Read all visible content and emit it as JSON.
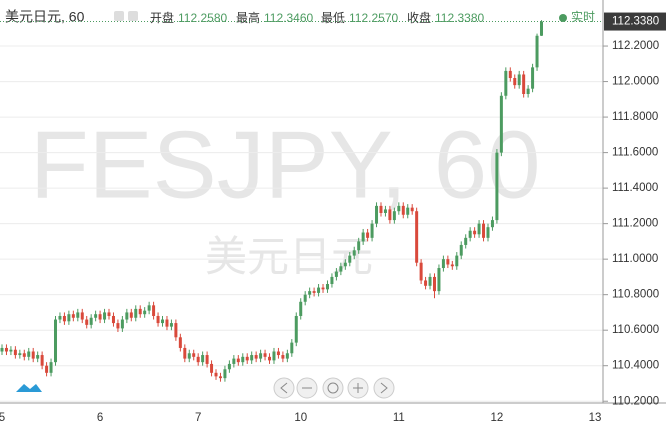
{
  "chart_data": {
    "type": "candlestick",
    "title": "美元日元, 60",
    "watermark": "FESJPY, 60",
    "watermark_sub": "美元日元",
    "status": "实时",
    "info": [
      {
        "name": "开盘",
        "value": 112.258,
        "label": "112.2580"
      },
      {
        "name": "最高",
        "value": 112.346,
        "label": "112.3460"
      },
      {
        "name": "最低",
        "value": 112.257,
        "label": "112.2570"
      },
      {
        "name": "收盘",
        "value": 112.338,
        "label": "112.3380"
      }
    ],
    "up_color": "#4c9b60",
    "down_color": "#d9493b",
    "categories": [
      "5",
      null,
      null,
      null,
      null,
      null,
      null,
      null,
      null,
      null,
      null,
      null,
      null,
      null,
      null,
      null,
      null,
      null,
      null,
      null,
      null,
      null,
      "6",
      null,
      null,
      null,
      null,
      null,
      null,
      null,
      null,
      null,
      null,
      null,
      null,
      null,
      null,
      null,
      null,
      null,
      null,
      null,
      null,
      null,
      "7",
      null,
      null,
      null,
      null,
      null,
      null,
      null,
      null,
      null,
      null,
      null,
      null,
      null,
      null,
      null,
      null,
      null,
      null,
      null,
      null,
      null,
      null,
      "10",
      null,
      null,
      null,
      null,
      null,
      null,
      null,
      null,
      null,
      null,
      null,
      null,
      null,
      null,
      null,
      null,
      null,
      null,
      null,
      null,
      null,
      "11",
      null,
      null,
      null,
      null,
      null,
      null,
      null,
      null,
      null,
      null,
      null,
      null,
      null,
      null,
      null,
      null,
      null,
      null,
      null,
      null,
      null,
      "12",
      null,
      null,
      null,
      null,
      null,
      null,
      null,
      null,
      null,
      null,
      null,
      null,
      null,
      null,
      null,
      null,
      null,
      null,
      null,
      null,
      null,
      "13"
    ],
    "open": [
      110.48,
      110.5,
      110.48,
      110.49,
      110.46,
      110.47,
      110.45,
      110.48,
      110.44,
      110.46,
      110.4,
      110.36,
      110.42,
      110.66,
      110.68,
      110.65,
      110.69,
      110.67,
      110.7,
      110.66,
      110.63,
      110.67,
      110.69,
      110.66,
      110.7,
      110.68,
      110.64,
      110.61,
      110.66,
      110.7,
      110.67,
      110.72,
      110.69,
      110.71,
      110.74,
      110.68,
      110.64,
      110.66,
      110.62,
      110.64,
      110.56,
      110.5,
      110.44,
      110.47,
      110.45,
      110.42,
      110.46,
      110.41,
      110.36,
      110.34,
      110.33,
      110.38,
      110.41,
      110.44,
      110.42,
      110.45,
      110.43,
      110.46,
      110.44,
      110.47,
      110.45,
      110.43,
      110.48,
      110.46,
      110.44,
      110.47,
      110.53,
      110.68,
      110.76,
      110.8,
      110.82,
      110.81,
      110.84,
      110.83,
      110.86,
      110.9,
      110.93,
      110.96,
      110.98,
      111.02,
      111.05,
      111.1,
      111.15,
      111.12,
      111.2,
      111.3,
      111.26,
      111.28,
      111.22,
      111.27,
      111.3,
      111.25,
      111.29,
      111.27,
      110.98,
      110.88,
      110.85,
      110.9,
      110.82,
      110.95,
      111.0,
      110.97,
      110.96,
      111.02,
      111.08,
      111.12,
      111.16,
      111.14,
      111.2,
      111.12,
      111.18,
      111.22,
      111.6,
      111.92,
      112.06,
      112.02,
      111.98,
      112.04,
      111.93,
      111.96,
      112.08,
      112.258,
      null,
      null,
      null,
      null,
      null,
      null,
      null,
      null,
      null,
      null,
      null,
      null
    ],
    "high": [
      110.52,
      110.52,
      110.51,
      110.51,
      110.49,
      110.49,
      110.5,
      110.5,
      110.48,
      110.48,
      110.42,
      110.44,
      110.68,
      110.7,
      110.7,
      110.71,
      110.71,
      110.72,
      110.72,
      110.68,
      110.69,
      110.71,
      110.71,
      110.72,
      110.72,
      110.7,
      110.66,
      110.68,
      110.72,
      110.72,
      110.74,
      110.74,
      110.73,
      110.76,
      110.76,
      110.7,
      110.68,
      110.68,
      110.66,
      110.66,
      110.58,
      110.52,
      110.49,
      110.49,
      110.47,
      110.48,
      110.48,
      110.43,
      110.38,
      110.36,
      110.4,
      110.43,
      110.46,
      110.46,
      110.47,
      110.47,
      110.48,
      110.48,
      110.49,
      110.49,
      110.47,
      110.5,
      110.5,
      110.48,
      110.49,
      110.55,
      110.7,
      110.78,
      110.82,
      110.84,
      110.84,
      110.86,
      110.86,
      110.88,
      110.92,
      110.95,
      110.98,
      111.0,
      111.04,
      111.07,
      111.12,
      111.17,
      111.17,
      111.22,
      111.32,
      111.32,
      111.3,
      111.3,
      111.29,
      111.32,
      111.32,
      111.31,
      111.31,
      111.29,
      111.0,
      110.9,
      110.92,
      110.92,
      110.97,
      111.02,
      111.02,
      110.99,
      111.04,
      111.1,
      111.14,
      111.18,
      111.18,
      111.22,
      111.22,
      111.2,
      111.24,
      111.62,
      111.94,
      112.08,
      112.08,
      112.04,
      112.06,
      112.06,
      111.98,
      112.1,
      112.27,
      112.346,
      null,
      null,
      null,
      null,
      null,
      null,
      null,
      null,
      null,
      null,
      null,
      null
    ],
    "low": [
      110.46,
      110.46,
      110.46,
      110.44,
      110.44,
      110.43,
      110.43,
      110.42,
      110.42,
      110.38,
      110.34,
      110.34,
      110.4,
      110.64,
      110.63,
      110.63,
      110.65,
      110.65,
      110.64,
      110.61,
      110.61,
      110.65,
      110.64,
      110.64,
      110.66,
      110.62,
      110.59,
      110.59,
      110.64,
      110.65,
      110.65,
      110.67,
      110.67,
      110.69,
      110.66,
      110.62,
      110.62,
      110.6,
      110.6,
      110.54,
      110.48,
      110.42,
      110.42,
      110.43,
      110.4,
      110.4,
      110.39,
      110.34,
      110.32,
      110.31,
      110.31,
      110.36,
      110.39,
      110.4,
      110.4,
      110.41,
      110.41,
      110.42,
      110.42,
      110.43,
      110.41,
      110.41,
      110.44,
      110.42,
      110.42,
      110.45,
      110.51,
      110.66,
      110.74,
      110.78,
      110.79,
      110.79,
      110.81,
      110.81,
      110.84,
      110.88,
      110.91,
      110.94,
      110.96,
      111.0,
      111.03,
      111.08,
      111.1,
      111.1,
      111.18,
      111.24,
      111.24,
      111.2,
      111.2,
      111.25,
      111.23,
      111.23,
      111.25,
      110.96,
      110.86,
      110.83,
      110.83,
      110.78,
      110.8,
      110.93,
      110.95,
      110.94,
      110.94,
      111.0,
      111.06,
      111.1,
      111.12,
      111.12,
      111.1,
      111.1,
      111.16,
      111.2,
      111.58,
      111.9,
      112.0,
      111.96,
      111.96,
      111.91,
      111.91,
      111.94,
      112.06,
      112.257,
      null,
      null,
      null,
      null,
      null,
      null,
      null,
      null,
      null,
      null,
      null,
      null
    ],
    "close": [
      110.5,
      110.48,
      110.49,
      110.46,
      110.47,
      110.45,
      110.48,
      110.44,
      110.46,
      110.4,
      110.36,
      110.42,
      110.66,
      110.68,
      110.65,
      110.69,
      110.67,
      110.7,
      110.66,
      110.63,
      110.67,
      110.69,
      110.66,
      110.7,
      110.68,
      110.64,
      110.61,
      110.66,
      110.7,
      110.67,
      110.72,
      110.69,
      110.71,
      110.74,
      110.68,
      110.64,
      110.66,
      110.62,
      110.64,
      110.56,
      110.5,
      110.44,
      110.47,
      110.45,
      110.42,
      110.46,
      110.41,
      110.36,
      110.34,
      110.33,
      110.38,
      110.41,
      110.44,
      110.42,
      110.45,
      110.43,
      110.46,
      110.44,
      110.47,
      110.45,
      110.43,
      110.48,
      110.46,
      110.44,
      110.47,
      110.53,
      110.68,
      110.76,
      110.8,
      110.82,
      110.81,
      110.84,
      110.83,
      110.86,
      110.9,
      110.93,
      110.96,
      110.98,
      111.02,
      111.05,
      111.1,
      111.15,
      111.12,
      111.2,
      111.3,
      111.26,
      111.28,
      111.22,
      111.27,
      111.3,
      111.25,
      111.29,
      111.27,
      110.98,
      110.88,
      110.85,
      110.9,
      110.82,
      110.95,
      111.0,
      110.97,
      110.96,
      111.02,
      111.08,
      111.12,
      111.16,
      111.14,
      111.2,
      111.12,
      111.18,
      111.22,
      111.6,
      111.92,
      112.06,
      112.02,
      111.98,
      112.04,
      111.93,
      111.96,
      112.08,
      112.258,
      112.338,
      null,
      null,
      null,
      null,
      null,
      null,
      null,
      null,
      null,
      null,
      null,
      null
    ],
    "ylim": [
      110.19,
      112.403
    ],
    "yticks": [
      {
        "value": 110.2,
        "label": "110.2000"
      },
      {
        "value": 110.4,
        "label": "110.4000"
      },
      {
        "value": 110.6,
        "label": "110.6000"
      },
      {
        "value": 110.8,
        "label": "110.8000"
      },
      {
        "value": 111.0,
        "label": "111.0000"
      },
      {
        "value": 111.2,
        "label": "111.2000"
      },
      {
        "value": 111.4,
        "label": "111.4000"
      },
      {
        "value": 111.6,
        "label": "111.6000"
      },
      {
        "value": 111.8,
        "label": "111.8000"
      },
      {
        "value": 112.0,
        "label": "112.0000"
      },
      {
        "value": 112.2,
        "label": "112.2000"
      }
    ],
    "grid": true
  }
}
